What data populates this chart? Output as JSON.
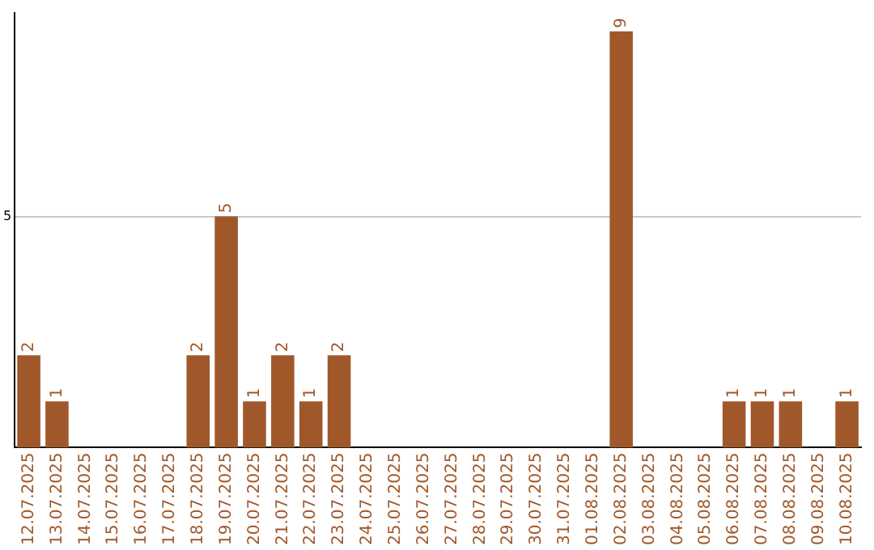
{
  "chart_data": {
    "type": "bar",
    "categories": [
      "12.07.2025",
      "13.07.2025",
      "14.07.2025",
      "15.07.2025",
      "16.07.2025",
      "17.07.2025",
      "18.07.2025",
      "19.07.2025",
      "20.07.2025",
      "21.07.2025",
      "22.07.2025",
      "23.07.2025",
      "24.07.2025",
      "25.07.2025",
      "26.07.2025",
      "27.07.2025",
      "28.07.2025",
      "29.07.2025",
      "30.07.2025",
      "31.07.2025",
      "01.08.2025",
      "02.08.2025",
      "03.08.2025",
      "04.08.2025",
      "05.08.2025",
      "06.08.2025",
      "07.08.2025",
      "08.08.2025",
      "09.08.2025",
      "10.08.2025"
    ],
    "values": [
      2,
      1,
      0,
      0,
      0,
      0,
      2,
      5,
      1,
      2,
      1,
      2,
      0,
      0,
      0,
      0,
      0,
      0,
      0,
      0,
      0,
      9,
      0,
      0,
      0,
      1,
      1,
      1,
      0,
      1
    ],
    "value_labels": [
      "2",
      "1",
      null,
      null,
      null,
      null,
      "2",
      "5",
      "1",
      "2",
      "1",
      "2",
      null,
      null,
      null,
      null,
      null,
      null,
      null,
      null,
      null,
      "9",
      null,
      null,
      null,
      "1",
      "1",
      "1",
      null,
      "1"
    ],
    "color": "#a0582a",
    "ylim": [
      0,
      9.4
    ],
    "yticks": [
      5
    ],
    "grid": "y"
  }
}
